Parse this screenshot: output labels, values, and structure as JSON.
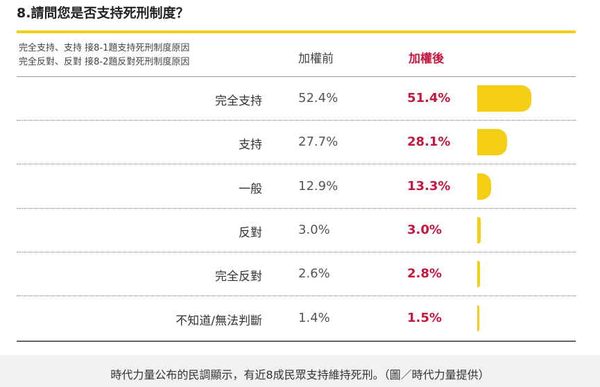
{
  "chart_data": {
    "type": "bar",
    "title": "8.請問您是否支持死刑制度？",
    "note_lines": [
      "完全支持、支持 接8-1題支持死刑制度原因",
      "完全反對、反對 接8-2題反對死刑制度原因"
    ],
    "columns": {
      "before": "加權前",
      "after": "加權後"
    },
    "categories": [
      "完全支持",
      "支持",
      "一般",
      "反對",
      "完全反對",
      "不知道/無法判斷"
    ],
    "series": [
      {
        "name": "加權前",
        "values": [
          52.4,
          27.7,
          12.9,
          3.0,
          2.6,
          1.4
        ]
      },
      {
        "name": "加權後",
        "values": [
          51.4,
          28.1,
          13.3,
          3.0,
          2.8,
          1.5
        ]
      }
    ],
    "labels_before": [
      "52.4%",
      "27.7%",
      "12.9%",
      "3.0%",
      "2.6%",
      "1.4%"
    ],
    "labels_after": [
      "51.4%",
      "28.1%",
      "13.3%",
      "3.0%",
      "2.8%",
      "1.5%"
    ],
    "bar_series": "加權後",
    "xlim": [
      0,
      51.4
    ],
    "colors": {
      "bar": "#f5cf16",
      "accent": "#c6163f",
      "rule": "#f5cf16"
    }
  },
  "caption": "時代力量公布的民調顯示，有近8成民眾支持維持死刑。（圖／時代力量提供）"
}
